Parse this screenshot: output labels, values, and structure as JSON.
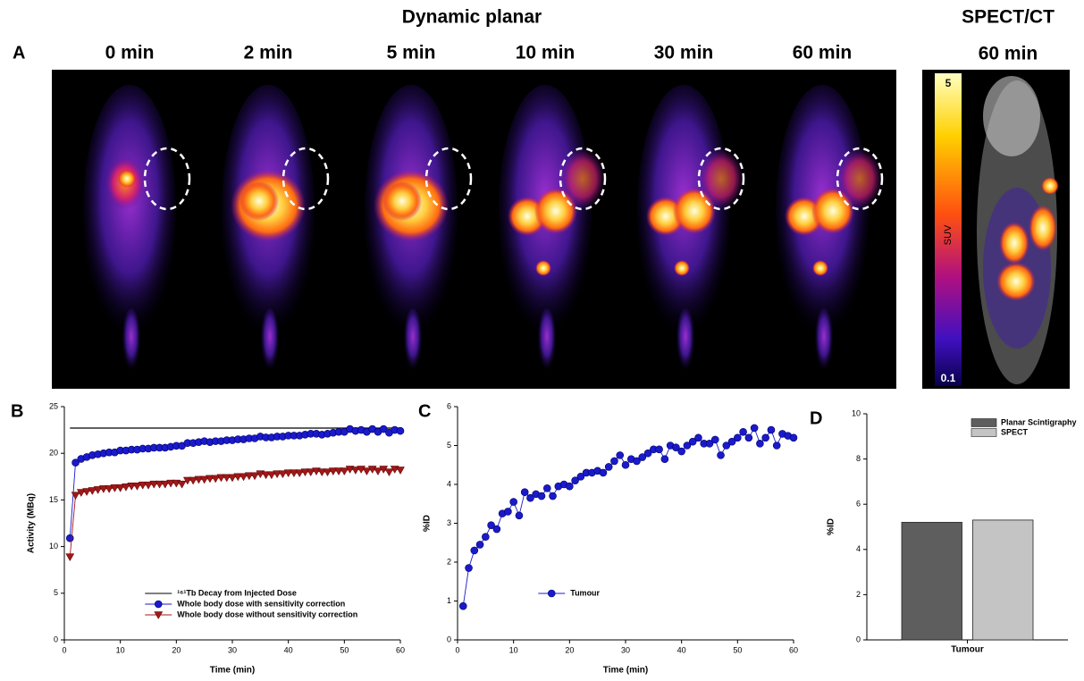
{
  "figure": {
    "panel": "A",
    "title": "Dynamic planar",
    "times": [
      "0 min",
      "2 min",
      "5 min",
      "10 min",
      "30 min",
      "60 min"
    ],
    "spect_title": "SPECT/CT",
    "spect_time": "60 min",
    "colorbar": {
      "max": 5,
      "label": "SUV",
      "min": 0.1
    }
  },
  "chart_data": [
    {
      "type": "line",
      "panel": "B",
      "x_label": "Time (min)",
      "y_label": "Activity (MBq)",
      "xlim": [
        0,
        60
      ],
      "xticks": [
        0,
        10,
        20,
        30,
        40,
        50,
        60
      ],
      "ylim": [
        0,
        25
      ],
      "yticks": [
        0,
        5,
        10,
        15,
        20,
        25
      ],
      "legend": "lower center",
      "series": [
        {
          "name": "¹⁶¹Tb Decay from Injected Dose",
          "color": "#000000",
          "marker": "none",
          "x": [
            1,
            60
          ],
          "values": [
            22.7,
            22.7
          ]
        },
        {
          "name": "Whole body dose with sensitivity correction",
          "color": "#1a1acc",
          "marker": "circle",
          "x": [
            1,
            2,
            3,
            4,
            5,
            6,
            7,
            8,
            9,
            10,
            11,
            12,
            13,
            14,
            15,
            16,
            17,
            18,
            19,
            20,
            21,
            22,
            23,
            24,
            25,
            26,
            27,
            28,
            29,
            30,
            31,
            32,
            33,
            34,
            35,
            36,
            37,
            38,
            39,
            40,
            41,
            42,
            43,
            44,
            45,
            46,
            47,
            48,
            49,
            50,
            51,
            52,
            53,
            54,
            55,
            56,
            57,
            58,
            59,
            60
          ],
          "values": [
            10.9,
            19.0,
            19.4,
            19.6,
            19.8,
            19.9,
            20.0,
            20.1,
            20.1,
            20.3,
            20.3,
            20.4,
            20.4,
            20.5,
            20.5,
            20.6,
            20.6,
            20.6,
            20.7,
            20.8,
            20.8,
            21.1,
            21.1,
            21.2,
            21.3,
            21.2,
            21.3,
            21.3,
            21.4,
            21.4,
            21.5,
            21.5,
            21.6,
            21.6,
            21.8,
            21.7,
            21.7,
            21.8,
            21.8,
            21.9,
            21.9,
            21.9,
            22.0,
            22.1,
            22.1,
            22.0,
            22.1,
            22.2,
            22.3,
            22.3,
            22.6,
            22.4,
            22.5,
            22.3,
            22.6,
            22.3,
            22.6,
            22.2,
            22.5,
            22.4
          ]
        },
        {
          "name": "Whole body dose without sensitivity correction",
          "color": "#a01818",
          "marker": "triangle-down",
          "x": [
            1,
            2,
            3,
            4,
            5,
            6,
            7,
            8,
            9,
            10,
            11,
            12,
            13,
            14,
            15,
            16,
            17,
            18,
            19,
            20,
            21,
            22,
            23,
            24,
            25,
            26,
            27,
            28,
            29,
            30,
            31,
            32,
            33,
            34,
            35,
            36,
            37,
            38,
            39,
            40,
            41,
            42,
            43,
            44,
            45,
            46,
            47,
            48,
            49,
            50,
            51,
            52,
            53,
            54,
            55,
            56,
            57,
            58,
            59,
            60
          ],
          "values": [
            8.9,
            15.5,
            15.8,
            15.9,
            16.0,
            16.1,
            16.2,
            16.2,
            16.3,
            16.3,
            16.4,
            16.5,
            16.5,
            16.6,
            16.6,
            16.7,
            16.7,
            16.7,
            16.8,
            16.8,
            16.7,
            17.1,
            17.1,
            17.2,
            17.2,
            17.3,
            17.3,
            17.4,
            17.4,
            17.4,
            17.5,
            17.5,
            17.6,
            17.6,
            17.8,
            17.7,
            17.7,
            17.8,
            17.8,
            17.9,
            17.9,
            17.9,
            18.0,
            18.0,
            18.1,
            18.0,
            18.0,
            18.1,
            18.1,
            18.1,
            18.3,
            18.2,
            18.3,
            18.1,
            18.3,
            18.1,
            18.3,
            18.0,
            18.3,
            18.2
          ]
        }
      ]
    },
    {
      "type": "line",
      "panel": "C",
      "x_label": "Time (min)",
      "y_label": "%ID",
      "xlim": [
        0,
        60
      ],
      "xticks": [
        0,
        10,
        20,
        30,
        40,
        50,
        60
      ],
      "ylim": [
        0,
        6
      ],
      "yticks": [
        0,
        1,
        2,
        3,
        4,
        5,
        6
      ],
      "legend": "lower center",
      "series": [
        {
          "name": "Tumour",
          "color": "#1a1acc",
          "marker": "circle",
          "x": [
            1,
            2,
            3,
            4,
            5,
            6,
            7,
            8,
            9,
            10,
            11,
            12,
            13,
            14,
            15,
            16,
            17,
            18,
            19,
            20,
            21,
            22,
            23,
            24,
            25,
            26,
            27,
            28,
            29,
            30,
            31,
            32,
            33,
            34,
            35,
            36,
            37,
            38,
            39,
            40,
            41,
            42,
            43,
            44,
            45,
            46,
            47,
            48,
            49,
            50,
            51,
            52,
            53,
            54,
            55,
            56,
            57,
            58,
            59,
            60
          ],
          "values": [
            0.87,
            1.85,
            2.3,
            2.45,
            2.65,
            2.95,
            2.85,
            3.25,
            3.3,
            3.55,
            3.2,
            3.8,
            3.65,
            3.75,
            3.7,
            3.9,
            3.7,
            3.95,
            4.0,
            3.95,
            4.1,
            4.2,
            4.3,
            4.3,
            4.35,
            4.3,
            4.45,
            4.6,
            4.75,
            4.5,
            4.65,
            4.6,
            4.7,
            4.8,
            4.9,
            4.9,
            4.65,
            5.0,
            4.95,
            4.85,
            5.0,
            5.1,
            5.2,
            5.05,
            5.05,
            5.15,
            4.75,
            5.0,
            5.1,
            5.2,
            5.35,
            5.2,
            5.45,
            5.05,
            5.2,
            5.4,
            5.0,
            5.3,
            5.25,
            5.2
          ]
        }
      ]
    },
    {
      "type": "bar",
      "panel": "D",
      "y_label": "%ID",
      "categories": [
        "Tumour"
      ],
      "ylim": [
        0,
        10
      ],
      "yticks": [
        0,
        2,
        4,
        6,
        8,
        10
      ],
      "legend": "upper right",
      "series": [
        {
          "name": "Planar Scintigraphy",
          "color": "#5e5e5e",
          "values": [
            5.2
          ]
        },
        {
          "name": "SPECT",
          "color": "#c4c4c4",
          "values": [
            5.3
          ]
        }
      ]
    }
  ]
}
